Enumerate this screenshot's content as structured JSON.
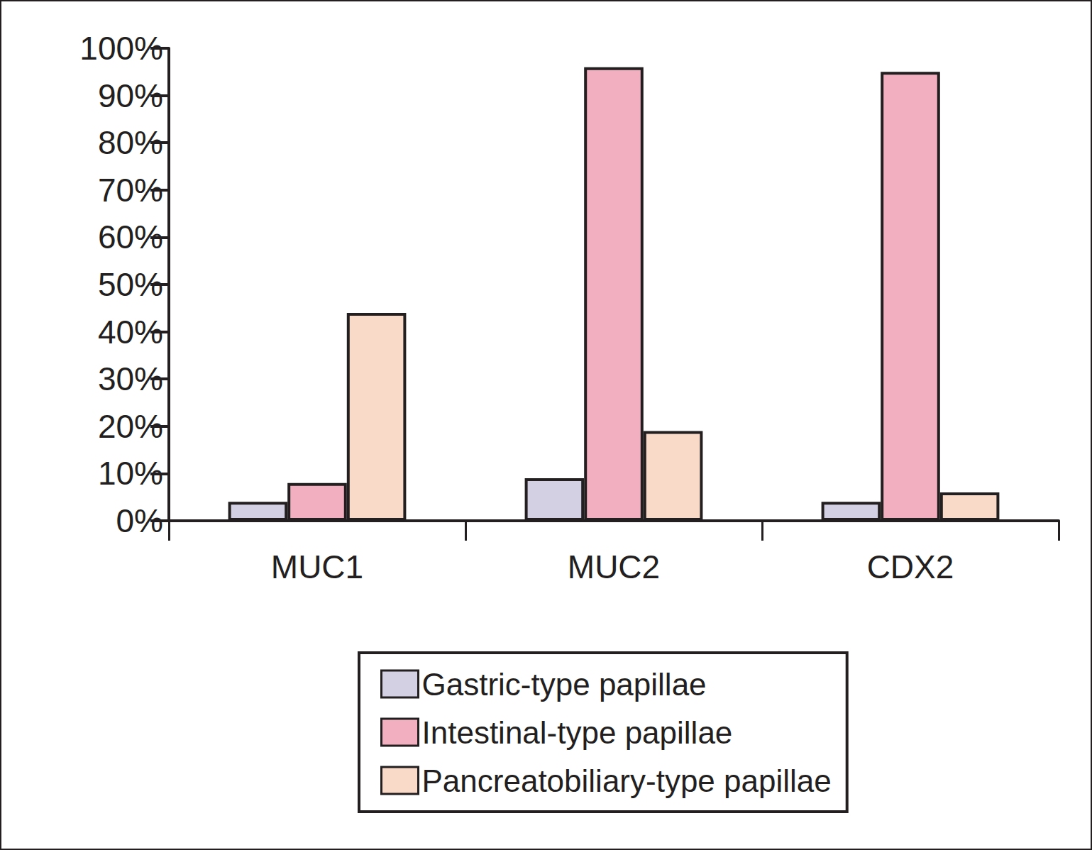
{
  "chart_data": {
    "type": "bar",
    "categories": [
      "MUC1",
      "MUC2",
      "CDX2"
    ],
    "series": [
      {
        "name": "Gastric-type papillae",
        "color": "#d2d0e2",
        "values": [
          4,
          9,
          4
        ]
      },
      {
        "name": "Intestinal-type papillae",
        "color": "#f2afbf",
        "values": [
          8,
          96,
          95
        ]
      },
      {
        "name": "Pancreatobiliary-type papillae",
        "color": "#f9d9c7",
        "values": [
          44,
          19,
          6
        ]
      }
    ],
    "ylim": [
      0,
      100
    ],
    "yticks": [
      {
        "value": 0,
        "label": "0%"
      },
      {
        "value": 10,
        "label": "10%"
      },
      {
        "value": 20,
        "label": "20%"
      },
      {
        "value": 30,
        "label": "30%"
      },
      {
        "value": 40,
        "label": "40%"
      },
      {
        "value": 50,
        "label": "50%"
      },
      {
        "value": 60,
        "label": "60%"
      },
      {
        "value": 70,
        "label": "70%"
      },
      {
        "value": 80,
        "label": "80%"
      },
      {
        "value": 90,
        "label": "90%"
      },
      {
        "value": 100,
        "label": "100%"
      }
    ],
    "grid": false,
    "legend": "bottom"
  }
}
